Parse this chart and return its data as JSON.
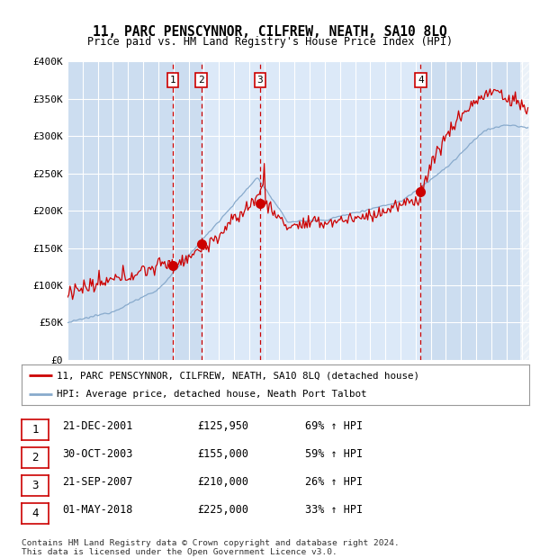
{
  "title": "11, PARC PENSCYNNOR, CILFREW, NEATH, SA10 8LQ",
  "subtitle": "Price paid vs. HM Land Registry's House Price Index (HPI)",
  "ylim": [
    0,
    400000
  ],
  "yticks": [
    0,
    50000,
    100000,
    150000,
    200000,
    250000,
    300000,
    350000,
    400000
  ],
  "ytick_labels": [
    "£0",
    "£50K",
    "£100K",
    "£150K",
    "£200K",
    "£250K",
    "£300K",
    "£350K",
    "£400K"
  ],
  "xlim_start": 1995.0,
  "xlim_end": 2025.5,
  "plot_bg_color": "#ccddf0",
  "shade_bg_color": "#dce9f8",
  "sale_dates": [
    2001.97,
    2003.83,
    2007.72,
    2018.33
  ],
  "sale_labels": [
    "1",
    "2",
    "3",
    "4"
  ],
  "sale_prices": [
    125950,
    155000,
    210000,
    225000
  ],
  "sale_date_strings": [
    "21-DEC-2001",
    "30-OCT-2003",
    "21-SEP-2007",
    "01-MAY-2018"
  ],
  "sale_pct": [
    "69%",
    "59%",
    "26%",
    "33%"
  ],
  "legend_line1": "11, PARC PENSCYNNOR, CILFREW, NEATH, SA10 8LQ (detached house)",
  "legend_line2": "HPI: Average price, detached house, Neath Port Talbot",
  "footer1": "Contains HM Land Registry data © Crown copyright and database right 2024.",
  "footer2": "This data is licensed under the Open Government Licence v3.0.",
  "red_color": "#cc0000",
  "blue_color": "#88aacc"
}
